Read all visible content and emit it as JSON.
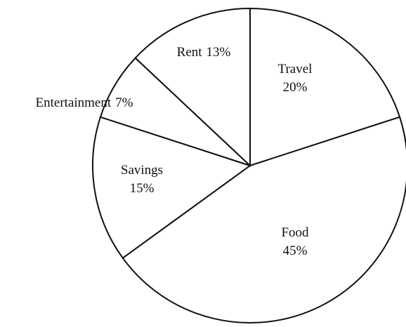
{
  "chart_data": {
    "type": "pie",
    "categories": [
      "Travel",
      "Food",
      "Savings",
      "Entertainment",
      "Rent"
    ],
    "values": [
      20,
      45,
      15,
      7,
      13
    ],
    "value_labels": [
      "20%",
      "45%",
      "15%",
      "7%",
      "13%"
    ],
    "color": "#ffffff"
  }
}
